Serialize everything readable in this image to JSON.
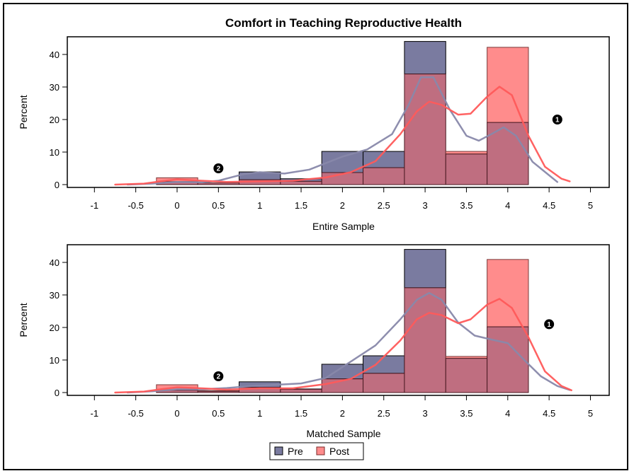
{
  "chart_data": {
    "type": "bar",
    "title": "Comfort in Teaching Reproductive Health",
    "colors": {
      "Pre": "#7a7ba0",
      "Post": "#ff8c8c",
      "overlap": "#bf6e80",
      "pre_curve": "#8888aa",
      "post_curve": "#ff5a5a"
    },
    "legend": {
      "position": "bottom-center",
      "entries": [
        "Pre",
        "Post"
      ]
    },
    "panels": [
      {
        "xlabel": "Entire Sample",
        "ylabel": "Percent",
        "xlim": [
          -1.15,
          5.25
        ],
        "ylim": [
          0,
          46
        ],
        "xticks": [
          "-1",
          "-0.5",
          "0",
          "0.5",
          "1",
          "1.5",
          "2",
          "2.5",
          "3",
          "3.5",
          "4",
          "4.5",
          "5"
        ],
        "yticks": [
          "0",
          "10",
          "20",
          "30",
          "40"
        ],
        "bin_centers": [
          0,
          0.5,
          1,
          1.5,
          2,
          2.5,
          3,
          3.5,
          4
        ],
        "bin_width": 0.5,
        "series": [
          {
            "name": "Pre",
            "values": [
              0.9,
              0.5,
              3.9,
              1.8,
              10.2,
              10.2,
              44.0,
              9.4,
              19.1
            ]
          },
          {
            "name": "Post",
            "values": [
              2.1,
              0.5,
              1.5,
              1.0,
              3.7,
              5.2,
              34.0,
              10.2,
              42.2
            ]
          }
        ],
        "density_curves": [
          {
            "name": "Pre",
            "x": [
              -0.6,
              -0.3,
              0,
              0.3,
              0.5,
              0.8,
              1.0,
              1.3,
              1.6,
              1.8,
              2.0,
              2.3,
              2.6,
              2.8,
              2.95,
              3.1,
              3.3,
              3.5,
              3.65,
              3.8,
              3.95,
              4.1,
              4.3,
              4.6
            ],
            "y": [
              0,
              0.3,
              0.8,
              0.7,
              1.2,
              3.2,
              3.8,
              3.4,
              4.6,
              6.6,
              8.6,
              10.8,
              15.5,
              24.5,
              33,
              33,
              23,
              15,
              13.5,
              15.5,
              17.6,
              15,
              7,
              0.8
            ]
          },
          {
            "name": "Post",
            "x": [
              -0.75,
              -0.4,
              -0.2,
              0,
              0.3,
              0.6,
              1.0,
              1.4,
              1.8,
              2.1,
              2.4,
              2.7,
              2.9,
              3.05,
              3.2,
              3.4,
              3.55,
              3.75,
              3.9,
              4.05,
              4.25,
              4.45,
              4.65,
              4.75
            ],
            "y": [
              0,
              0.3,
              1.0,
              1.6,
              1.2,
              0.8,
              1.0,
              1.2,
              2.2,
              3.8,
              7.2,
              15.5,
              22.5,
              25.5,
              24.5,
              21.5,
              21.8,
              27,
              30.1,
              27.5,
              15,
              5.5,
              1.8,
              1.0
            ]
          }
        ],
        "annotations": [
          {
            "label": "1",
            "x": 4.6,
            "y": 20
          },
          {
            "label": "2",
            "x": 0.5,
            "y": 5
          }
        ]
      },
      {
        "xlabel": "Matched Sample",
        "ylabel": "Percent",
        "xlim": [
          -1.15,
          5.25
        ],
        "ylim": [
          0,
          46
        ],
        "xticks": [
          "-1",
          "-0.5",
          "0",
          "0.5",
          "1",
          "1.5",
          "2",
          "2.5",
          "3",
          "3.5",
          "4",
          "4.5",
          "5"
        ],
        "yticks": [
          "0",
          "10",
          "20",
          "30",
          "40"
        ],
        "bin_centers": [
          0,
          0.5,
          1,
          1.5,
          2,
          2.5,
          3,
          3.5,
          4
        ],
        "bin_width": 0.5,
        "series": [
          {
            "name": "Pre",
            "values": [
              0.7,
              0.4,
              3.3,
              1.1,
              8.7,
              11.3,
              44.0,
              10.5,
              20.2
            ]
          },
          {
            "name": "Post",
            "values": [
              2.4,
              0.6,
              1.6,
              1.0,
              4.2,
              5.9,
              32.2,
              11.1,
              40.9
            ]
          }
        ],
        "density_curves": [
          {
            "name": "Pre",
            "x": [
              -0.6,
              -0.3,
              0,
              0.3,
              0.6,
              0.9,
              1.2,
              1.5,
              1.8,
              2.1,
              2.4,
              2.7,
              2.9,
              3.05,
              3.2,
              3.4,
              3.6,
              3.8,
              4.0,
              4.2,
              4.4,
              4.6,
              4.75
            ],
            "y": [
              0,
              0.4,
              1.0,
              1.0,
              1.4,
              2.0,
              2.4,
              2.8,
              4.5,
              9.5,
              14.5,
              22.5,
              28.5,
              30.6,
              28.5,
              21.5,
              17.5,
              16.3,
              15.2,
              10,
              5,
              2,
              0.8
            ]
          },
          {
            "name": "Post",
            "x": [
              -0.75,
              -0.4,
              -0.2,
              0,
              0.3,
              0.6,
              1.0,
              1.4,
              1.8,
              2.1,
              2.4,
              2.7,
              2.9,
              3.05,
              3.2,
              3.4,
              3.55,
              3.75,
              3.9,
              4.05,
              4.25,
              4.45,
              4.65,
              4.77
            ],
            "y": [
              0,
              0.3,
              1.0,
              1.6,
              1.3,
              0.9,
              1.3,
              1.3,
              2.6,
              4.2,
              8.5,
              16,
              22.5,
              24.5,
              23.8,
              21.3,
              22.5,
              27,
              28.8,
              26,
              17,
              6.5,
              2,
              0.7
            ]
          }
        ],
        "annotations": [
          {
            "label": "1",
            "x": 4.5,
            "y": 21
          },
          {
            "label": "2",
            "x": 0.5,
            "y": 5
          }
        ]
      }
    ]
  }
}
